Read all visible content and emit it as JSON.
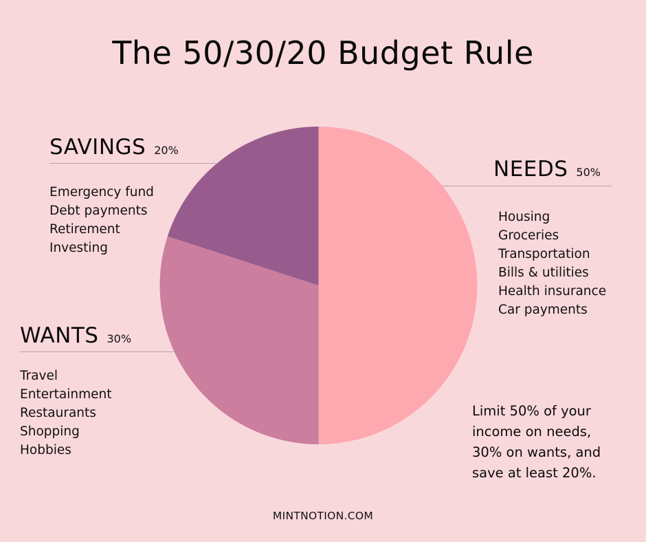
{
  "title": "The 50/30/20 Budget Rule",
  "colors": {
    "background": "#f9d8dc",
    "needs": "#fea8b0",
    "wants": "#cc7e9f",
    "savings": "#975c8d"
  },
  "categories": {
    "savings": {
      "name": "SAVINGS",
      "percent": "20%",
      "items": [
        "Emergency fund",
        "Debt payments",
        "Retirement",
        "Investing"
      ]
    },
    "needs": {
      "name": "NEEDS",
      "percent": "50%",
      "items": [
        "Housing",
        "Groceries",
        "Transportation",
        "Bills & utilities",
        "Health insurance",
        "Car payments"
      ]
    },
    "wants": {
      "name": "WANTS",
      "percent": "30%",
      "items": [
        "Travel",
        "Entertainment",
        "Restaurants",
        "Shopping",
        "Hobbies"
      ]
    }
  },
  "note_lines": [
    "Limit 50% of your",
    "income on needs,",
    "30% on wants, and",
    "save at least 20%."
  ],
  "footer": "MINTNOTION.COM",
  "chart_data": {
    "type": "pie",
    "title": "The 50/30/20 Budget Rule",
    "categories": [
      "Needs",
      "Wants",
      "Savings"
    ],
    "values": [
      50,
      30,
      20
    ],
    "colors": [
      "#fea8b0",
      "#cc7e9f",
      "#975c8d"
    ],
    "start_angle_deg": 0,
    "direction": "clockwise from 12 o'clock",
    "annotations": [
      {
        "label": "NEEDS 50%",
        "items": [
          "Housing",
          "Groceries",
          "Transportation",
          "Bills & utilities",
          "Health insurance",
          "Car payments"
        ]
      },
      {
        "label": "WANTS 30%",
        "items": [
          "Travel",
          "Entertainment",
          "Restaurants",
          "Shopping",
          "Hobbies"
        ]
      },
      {
        "label": "SAVINGS 20%",
        "items": [
          "Emergency fund",
          "Debt payments",
          "Retirement",
          "Investing"
        ]
      }
    ],
    "legend": "none (inline labels)",
    "grid": false
  }
}
